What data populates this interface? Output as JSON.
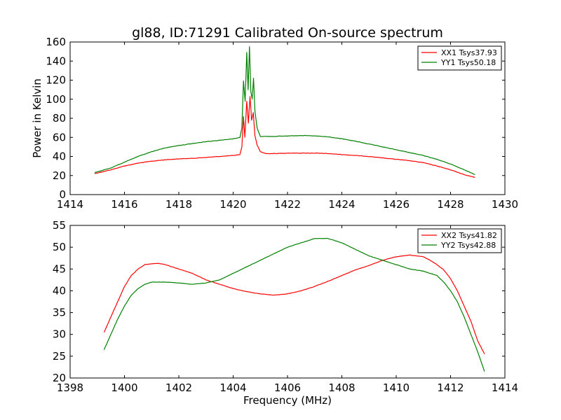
{
  "chart_data": [
    {
      "type": "line",
      "title": "gl88, ID:71291 Calibrated On-source spectrum",
      "xlabel": "",
      "ylabel": "Power in Kelvin",
      "xlim": [
        1414,
        1430
      ],
      "ylim": [
        0,
        160
      ],
      "xticks": [
        1414,
        1416,
        1418,
        1420,
        1422,
        1424,
        1426,
        1428,
        1430
      ],
      "yticks": [
        0,
        20,
        40,
        60,
        80,
        100,
        120,
        140,
        160
      ],
      "grid": false,
      "legend_position": "top-right",
      "series": [
        {
          "name": "XX1 Tsys37.93",
          "color": "#ff0000",
          "points": [
            [
              1414.9,
              22
            ],
            [
              1415.5,
              26
            ],
            [
              1416.0,
              30
            ],
            [
              1416.5,
              33
            ],
            [
              1417.0,
              35
            ],
            [
              1417.5,
              36.5
            ],
            [
              1418.0,
              37.5
            ],
            [
              1418.5,
              38
            ],
            [
              1419.0,
              39
            ],
            [
              1419.5,
              40
            ],
            [
              1420.0,
              41
            ],
            [
              1420.25,
              42
            ],
            [
              1420.32,
              50
            ],
            [
              1420.38,
              82
            ],
            [
              1420.43,
              60
            ],
            [
              1420.5,
              98
            ],
            [
              1420.56,
              75
            ],
            [
              1420.62,
              103
            ],
            [
              1420.68,
              78
            ],
            [
              1420.74,
              86
            ],
            [
              1420.8,
              62
            ],
            [
              1420.88,
              52
            ],
            [
              1421.0,
              45
            ],
            [
              1421.2,
              43
            ],
            [
              1421.5,
              43
            ],
            [
              1422.0,
              43.5
            ],
            [
              1422.5,
              43.5
            ],
            [
              1423.0,
              43.5
            ],
            [
              1423.5,
              43
            ],
            [
              1424.0,
              42
            ],
            [
              1424.5,
              41
            ],
            [
              1425.0,
              40
            ],
            [
              1425.5,
              38.5
            ],
            [
              1426.0,
              37
            ],
            [
              1426.5,
              35.5
            ],
            [
              1427.0,
              33.5
            ],
            [
              1427.5,
              30
            ],
            [
              1428.0,
              26
            ],
            [
              1428.5,
              21
            ],
            [
              1428.9,
              18
            ]
          ]
        },
        {
          "name": "YY1 Tsys50.18",
          "color": "#008000",
          "points": [
            [
              1414.9,
              23
            ],
            [
              1415.5,
              28
            ],
            [
              1416.0,
              34
            ],
            [
              1416.5,
              40
            ],
            [
              1417.0,
              45
            ],
            [
              1417.5,
              49
            ],
            [
              1418.0,
              51.5
            ],
            [
              1418.5,
              53.5
            ],
            [
              1419.0,
              55.5
            ],
            [
              1419.5,
              57
            ],
            [
              1420.0,
              58.5
            ],
            [
              1420.25,
              60
            ],
            [
              1420.32,
              70
            ],
            [
              1420.38,
              119
            ],
            [
              1420.44,
              98
            ],
            [
              1420.5,
              149
            ],
            [
              1420.55,
              110
            ],
            [
              1420.6,
              155
            ],
            [
              1420.65,
              108
            ],
            [
              1420.7,
              100
            ],
            [
              1420.75,
              122
            ],
            [
              1420.8,
              88
            ],
            [
              1420.88,
              70
            ],
            [
              1421.0,
              61
            ],
            [
              1421.3,
              61
            ],
            [
              1421.5,
              61
            ],
            [
              1422.0,
              61.5
            ],
            [
              1422.5,
              62
            ],
            [
              1423.0,
              61.5
            ],
            [
              1423.5,
              60.5
            ],
            [
              1424.0,
              58.5
            ],
            [
              1424.5,
              56
            ],
            [
              1425.0,
              53
            ],
            [
              1425.5,
              50
            ],
            [
              1426.0,
              47
            ],
            [
              1426.5,
              44
            ],
            [
              1427.0,
              41
            ],
            [
              1427.5,
              37
            ],
            [
              1428.0,
              32
            ],
            [
              1428.5,
              26
            ],
            [
              1428.9,
              21
            ]
          ]
        }
      ]
    },
    {
      "type": "line",
      "title": "",
      "xlabel": "Frequency (MHz)",
      "ylabel": "",
      "xlim": [
        1398,
        1414
      ],
      "ylim": [
        20,
        55
      ],
      "xticks": [
        1398,
        1400,
        1402,
        1404,
        1406,
        1408,
        1410,
        1412,
        1414
      ],
      "yticks": [
        20,
        25,
        30,
        35,
        40,
        45,
        50,
        55
      ],
      "grid": false,
      "legend_position": "top-right",
      "series": [
        {
          "name": "XX2 Tsys41.82",
          "color": "#ff0000",
          "points": [
            [
              1399.25,
              30.5
            ],
            [
              1399.5,
              34
            ],
            [
              1399.75,
              37.5
            ],
            [
              1400.0,
              41
            ],
            [
              1400.25,
              43.5
            ],
            [
              1400.5,
              45
            ],
            [
              1400.75,
              46
            ],
            [
              1401.0,
              46.2
            ],
            [
              1401.25,
              46.3
            ],
            [
              1401.5,
              46
            ],
            [
              1401.75,
              45.5
            ],
            [
              1402.0,
              45
            ],
            [
              1402.5,
              44
            ],
            [
              1403.0,
              42.5
            ],
            [
              1403.5,
              41.5
            ],
            [
              1404.0,
              40.5
            ],
            [
              1404.5,
              39.8
            ],
            [
              1405.0,
              39.3
            ],
            [
              1405.5,
              39
            ],
            [
              1406.0,
              39.3
            ],
            [
              1406.5,
              40
            ],
            [
              1407.0,
              41
            ],
            [
              1407.5,
              42.2
            ],
            [
              1408.0,
              43.5
            ],
            [
              1408.5,
              44.8
            ],
            [
              1409.0,
              45.8
            ],
            [
              1409.5,
              47
            ],
            [
              1410.0,
              47.8
            ],
            [
              1410.5,
              48.2
            ],
            [
              1411.0,
              47.8
            ],
            [
              1411.25,
              47
            ],
            [
              1411.5,
              46
            ],
            [
              1411.75,
              44.8
            ],
            [
              1412.0,
              42.8
            ],
            [
              1412.25,
              40
            ],
            [
              1412.5,
              36.5
            ],
            [
              1412.75,
              33
            ],
            [
              1413.0,
              28.5
            ],
            [
              1413.25,
              25.5
            ]
          ]
        },
        {
          "name": "YY2 Tsys42.88",
          "color": "#008000",
          "points": [
            [
              1399.25,
              26.5
            ],
            [
              1399.5,
              30
            ],
            [
              1399.75,
              33.5
            ],
            [
              1400.0,
              36.5
            ],
            [
              1400.25,
              39
            ],
            [
              1400.5,
              40.5
            ],
            [
              1400.75,
              41.5
            ],
            [
              1401.0,
              42
            ],
            [
              1401.5,
              42
            ],
            [
              1402.0,
              41.8
            ],
            [
              1402.5,
              41.5
            ],
            [
              1403.0,
              41.8
            ],
            [
              1403.5,
              42.5
            ],
            [
              1404.0,
              44
            ],
            [
              1404.5,
              45.5
            ],
            [
              1405.0,
              47
            ],
            [
              1405.5,
              48.5
            ],
            [
              1406.0,
              50
            ],
            [
              1406.5,
              51
            ],
            [
              1407.0,
              52
            ],
            [
              1407.5,
              52
            ],
            [
              1408.0,
              51
            ],
            [
              1408.5,
              49.5
            ],
            [
              1409.0,
              48
            ],
            [
              1409.5,
              47
            ],
            [
              1410.0,
              46
            ],
            [
              1410.5,
              45
            ],
            [
              1411.0,
              44.5
            ],
            [
              1411.5,
              43.5
            ],
            [
              1411.75,
              42
            ],
            [
              1412.0,
              40
            ],
            [
              1412.25,
              37.5
            ],
            [
              1412.5,
              34
            ],
            [
              1412.75,
              30
            ],
            [
              1413.0,
              26
            ],
            [
              1413.25,
              21.5
            ]
          ]
        }
      ]
    }
  ]
}
